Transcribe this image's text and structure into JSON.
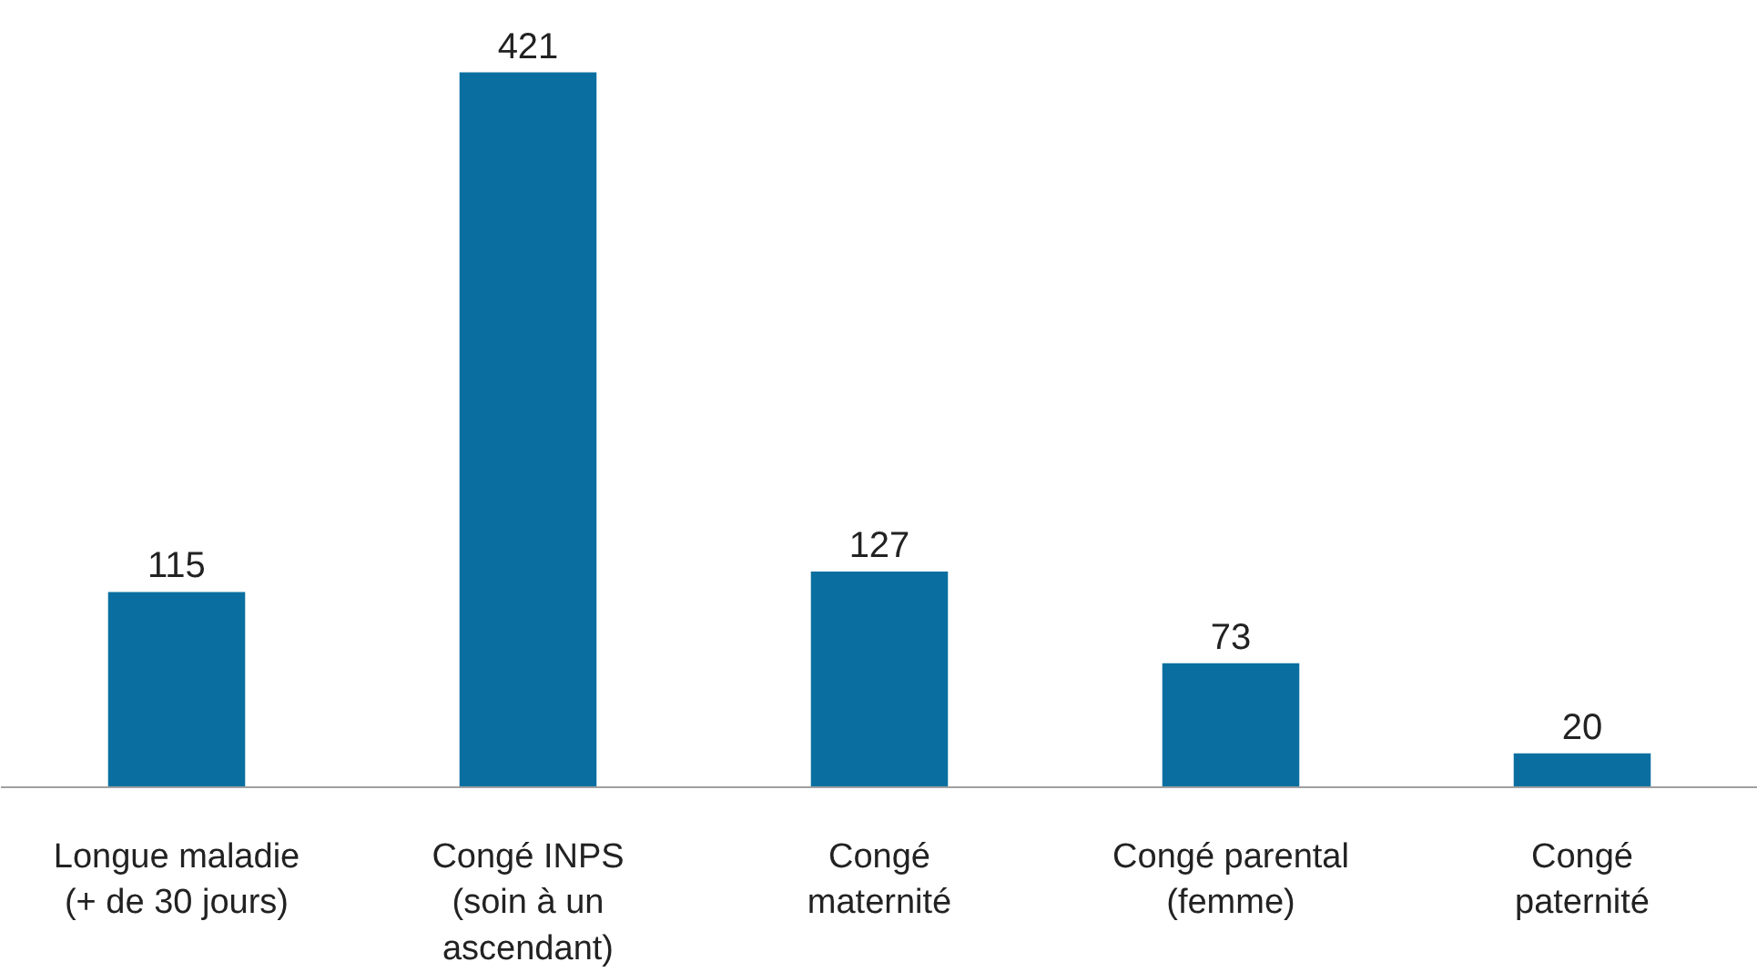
{
  "chart_data": {
    "type": "bar",
    "categories": [
      "Longue maladie\n(+ de 30 jours)",
      "Congé INPS\n(soin à un\nascendant)",
      "Congé\nmaternité",
      "Congé parental\n(femme)",
      "Congé\npaternité"
    ],
    "values": [
      115,
      421,
      127,
      73,
      20
    ],
    "color": "#0a6fa0",
    "data_labels": true
  }
}
